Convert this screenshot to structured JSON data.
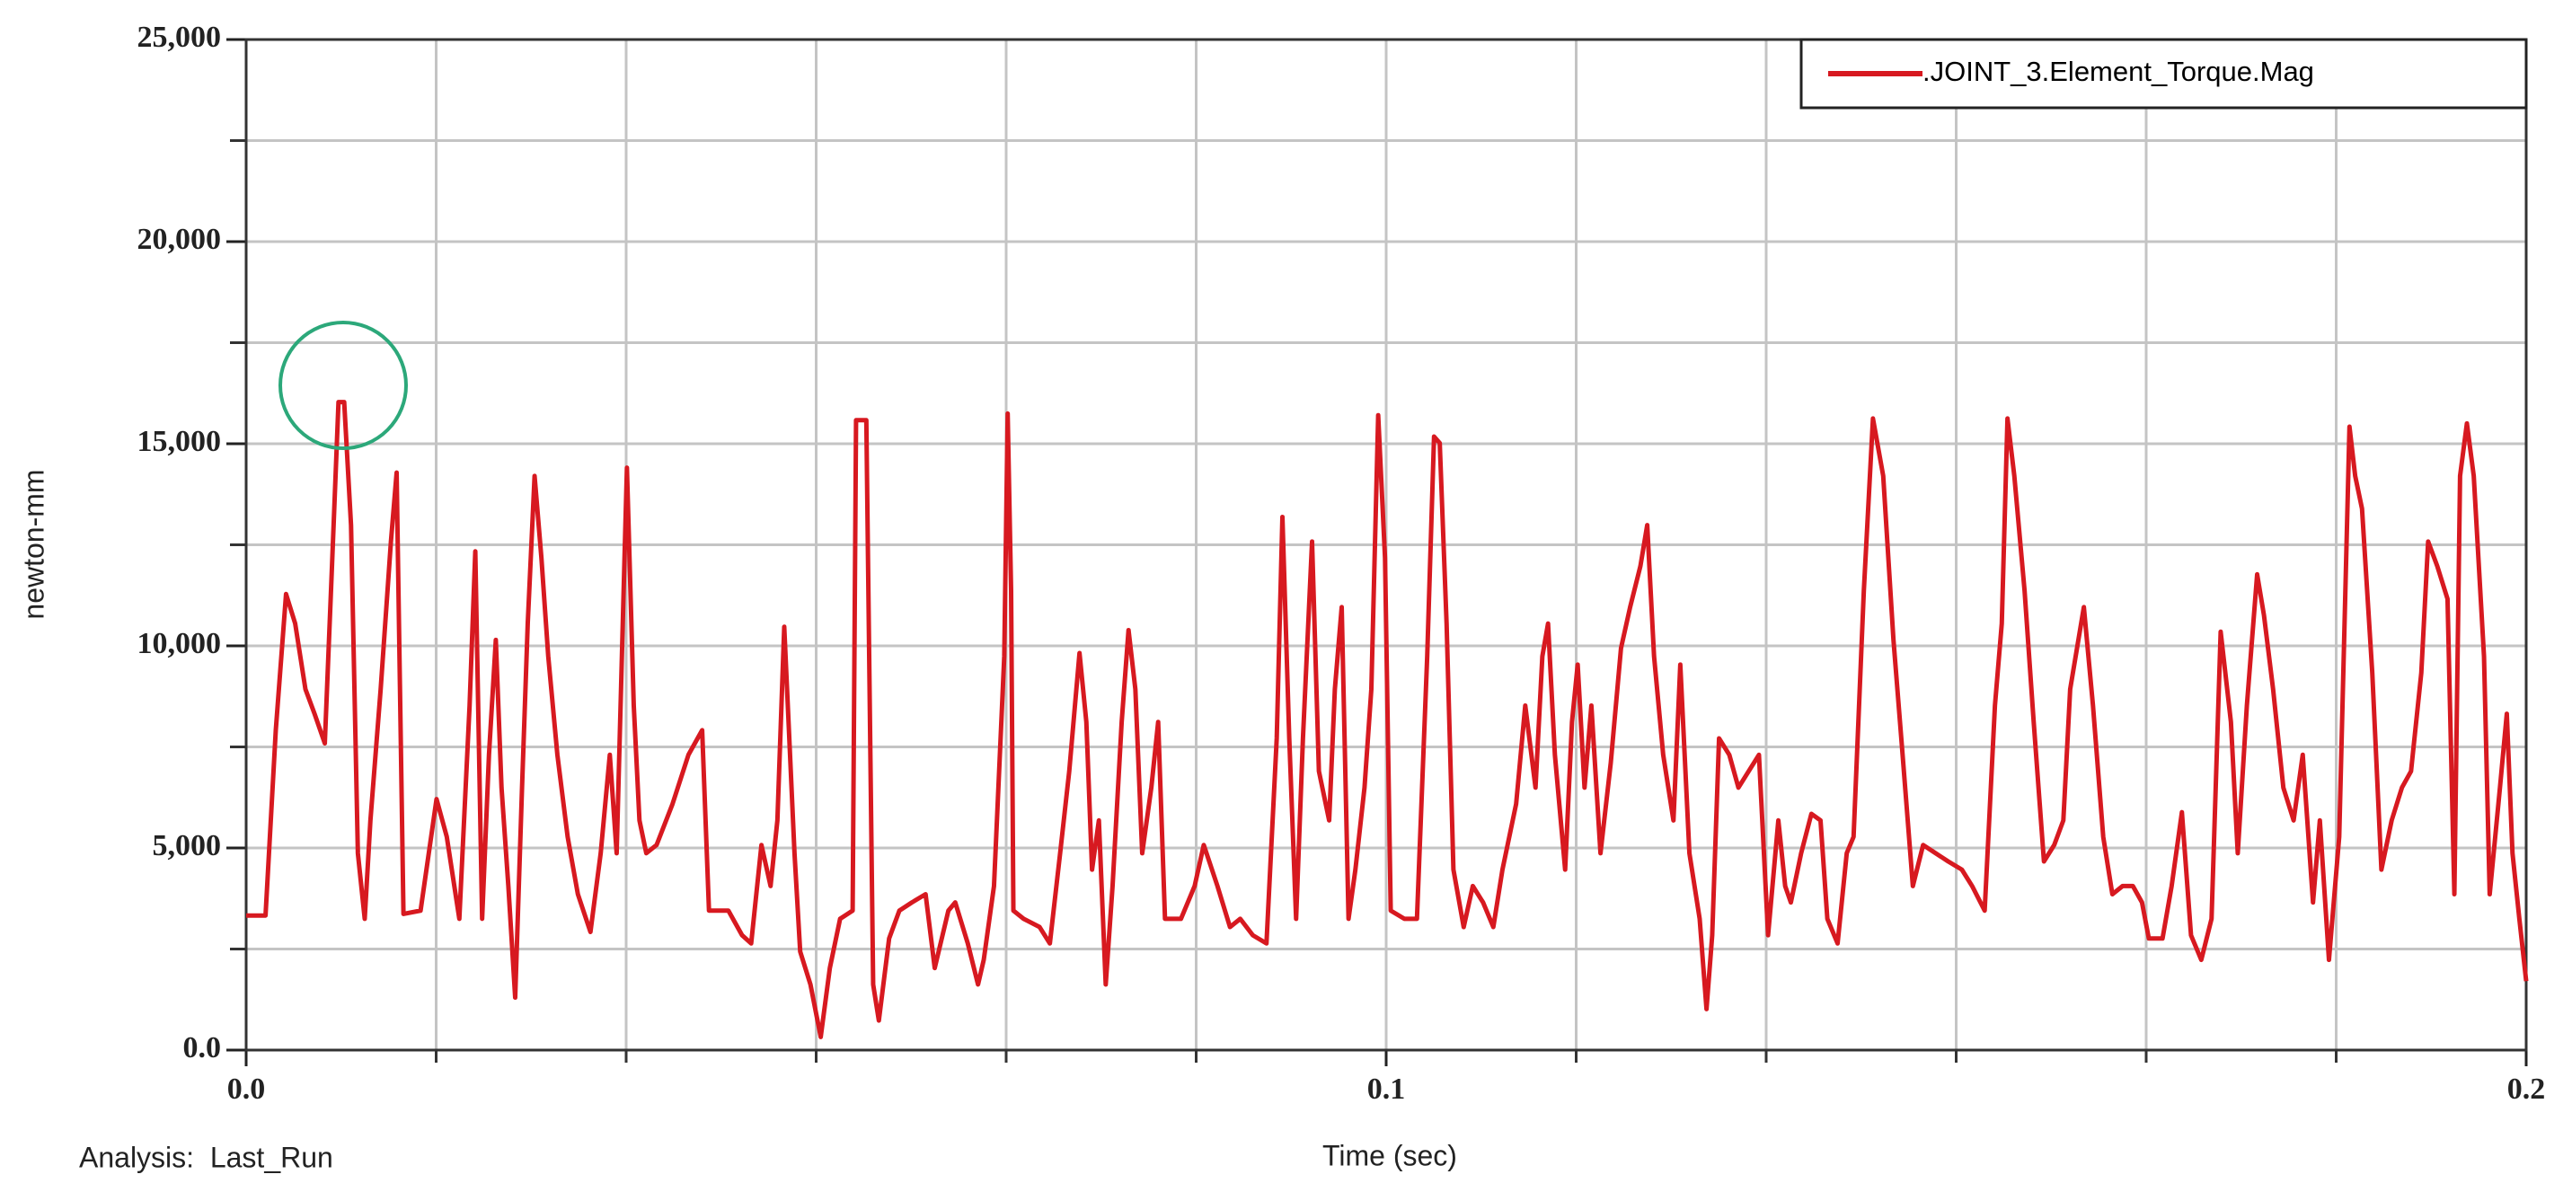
{
  "chart_data": {
    "type": "line",
    "xlabel": "Time (sec)",
    "ylabel": "newton-mm",
    "annotation": "Analysis:  Last_Run",
    "xlim": [
      0,
      0.2
    ],
    "xticks": [
      {
        "value": 0,
        "label": "0.0"
      },
      0.1,
      0.2
    ],
    "ylim": [
      0,
      25000
    ],
    "yticks": [
      {
        "value": 0,
        "label": "0.0"
      },
      {
        "value": 5000,
        "label": "5,000"
      },
      {
        "value": 10000,
        "label": "10,000"
      },
      {
        "value": 15000,
        "label": "15,000"
      },
      {
        "value": 20000,
        "label": "20,000"
      },
      {
        "value": 25000,
        "label": "25,000"
      }
    ],
    "grid": true,
    "grid_divisions": {
      "x": 12,
      "y": 10
    },
    "legend": "top-right",
    "x": [
      0,
      0.0017,
      0.0026,
      0.0035,
      0.0043,
      0.0052,
      0.006,
      0.0069,
      0.0075,
      0.0081,
      0.0086,
      0.0092,
      0.0098,
      0.0104,
      0.0109,
      0.0118,
      0.0127,
      0.0132,
      0.0138,
      0.0153,
      0.0167,
      0.0176,
      0.0187,
      0.0196,
      0.0201,
      0.0207,
      0.0213,
      0.0219,
      0.0224,
      0.023,
      0.0236,
      0.0242,
      0.0247,
      0.0253,
      0.0259,
      0.0265,
      0.0273,
      0.0282,
      0.0291,
      0.0302,
      0.0311,
      0.0319,
      0.0325,
      0.0334,
      0.034,
      0.0345,
      0.0351,
      0.036,
      0.0374,
      0.0388,
      0.04,
      0.0406,
      0.0423,
      0.0435,
      0.0443,
      0.0452,
      0.046,
      0.0466,
      0.0472,
      0.0481,
      0.0486,
      0.0495,
      0.0504,
      0.0512,
      0.0521,
      0.0532,
      0.0535,
      0.0544,
      0.055,
      0.0555,
      0.0564,
      0.0573,
      0.0584,
      0.0596,
      0.0604,
      0.0616,
      0.0622,
      0.0633,
      0.0642,
      0.0647,
      0.0656,
      0.0665,
      0.0668,
      0.0671,
      0.0673,
      0.0682,
      0.0696,
      0.0705,
      0.0714,
      0.0722,
      0.0731,
      0.0737,
      0.0742,
      0.0748,
      0.0754,
      0.076,
      0.0768,
      0.0774,
      0.078,
      0.0786,
      0.0794,
      0.08,
      0.0806,
      0.082,
      0.0832,
      0.084,
      0.0852,
      0.0863,
      0.0872,
      0.0883,
      0.0895,
      0.0904,
      0.0909,
      0.0915,
      0.0921,
      0.0927,
      0.0935,
      0.0941,
      0.095,
      0.0955,
      0.0961,
      0.0967,
      0.0973,
      0.0981,
      0.0987,
      0.0993,
      0.0999,
      0.1004,
      0.1016,
      0.1027,
      0.1036,
      0.1042,
      0.1047,
      0.1053,
      0.1059,
      0.1068,
      0.1076,
      0.1085,
      0.1094,
      0.1102,
      0.1114,
      0.1122,
      0.1131,
      0.1137,
      0.1142,
      0.1148,
      0.1157,
      0.1163,
      0.1168,
      0.1174,
      0.118,
      0.1188,
      0.1197,
      0.1206,
      0.1214,
      0.1223,
      0.1229,
      0.1235,
      0.1243,
      0.1252,
      0.1258,
      0.1266,
      0.1275,
      0.1281,
      0.1286,
      0.1292,
      0.1301,
      0.1309,
      0.1318,
      0.1327,
      0.1335,
      0.1344,
      0.135,
      0.1355,
      0.1364,
      0.1373,
      0.1381,
      0.1387,
      0.1396,
      0.1404,
      0.141,
      0.1419,
      0.1427,
      0.1436,
      0.1445,
      0.1453,
      0.1462,
      0.1471,
      0.1482,
      0.1493,
      0.1505,
      0.1514,
      0.1525,
      0.1534,
      0.154,
      0.1545,
      0.1551,
      0.156,
      0.1568,
      0.1577,
      0.1586,
      0.1594,
      0.16,
      0.1612,
      0.162,
      0.1629,
      0.1637,
      0.1646,
      0.1655,
      0.1663,
      0.1669,
      0.1681,
      0.1689,
      0.1698,
      0.1706,
      0.1715,
      0.1724,
      0.1732,
      0.1741,
      0.1747,
      0.1755,
      0.1764,
      0.177,
      0.1778,
      0.1787,
      0.1796,
      0.1804,
      0.1813,
      0.1819,
      0.1827,
      0.1836,
      0.1845,
      0.185,
      0.1856,
      0.1865,
      0.1873,
      0.1882,
      0.1891,
      0.1899,
      0.1908,
      0.1914,
      0.1922,
      0.1931,
      0.1937,
      0.1942,
      0.1948,
      0.1954,
      0.1963,
      0.1968,
      0.1977,
      0.1983,
      0.1988,
      0.1994,
      0.2
    ],
    "series": [
      {
        "name": ".JOINT_3.Element_Torque.Mag",
        "color": "#d71920",
        "values": [
          3328,
          3328,
          7914,
          11282,
          10552,
          8928,
          8320,
          7589,
          11769,
          16031,
          16031,
          12987,
          4870,
          3247,
          5682,
          8928,
          12581,
          14286,
          3368,
          3450,
          6209,
          5276,
          3247,
          8523,
          12338,
          3247,
          7305,
          10146,
          6493,
          4058,
          1299,
          6493,
          10552,
          14204,
          12175,
          9740,
          7305,
          5276,
          3855,
          2922,
          4870,
          7305,
          4870,
          14407,
          8523,
          5682,
          4870,
          5073,
          6088,
          7305,
          7914,
          3450,
          3450,
          2841,
          2638,
          5073,
          4058,
          5682,
          10471,
          4870,
          2435,
          1623,
          325,
          2029,
          3247,
          3450,
          15584,
          15584,
          1623,
          731,
          2760,
          3450,
          3653,
          3855,
          2029,
          3450,
          3653,
          2638,
          1623,
          2232,
          4058,
          9740,
          15747,
          11364,
          3450,
          3247,
          3044,
          2638,
          4870,
          6899,
          9821,
          8117,
          4464,
          5682,
          1623,
          4058,
          8117,
          10390,
          8928,
          4870,
          6493,
          8117,
          3247,
          3247,
          4058,
          5073,
          4058,
          3044,
          3247,
          2841,
          2638,
          7711,
          13190,
          7711,
          3247,
          7711,
          12581,
          6899,
          5682,
          8928,
          10958,
          3247,
          4464,
          6493,
          8928,
          15706,
          12175,
          3450,
          3247,
          3247,
          9740,
          15178,
          15016,
          10552,
          4464,
          3044,
          4058,
          3653,
          3044,
          4464,
          6088,
          8523,
          6493,
          9740,
          10552,
          7305,
          4464,
          8117,
          9537,
          6493,
          8523,
          4870,
          7102,
          9943,
          10958,
          11972,
          12987,
          9740,
          7305,
          5682,
          9537,
          4870,
          3247,
          1015,
          2841,
          7711,
          7305,
          6493,
          6899,
          7305,
          2841,
          5682,
          4058,
          3653,
          4870,
          5844,
          5682,
          3247,
          2638,
          4870,
          5276,
          11364,
          15625,
          14204,
          10146,
          7305,
          4058,
          5073,
          4870,
          4667,
          4464,
          4058,
          3450,
          8523,
          10552,
          15625,
          14204,
          11364,
          8117,
          4667,
          5073,
          5682,
          8928,
          10958,
          8523,
          5276,
          3855,
          4058,
          4058,
          3653,
          2760,
          2760,
          4058,
          5885,
          2841,
          2232,
          3247,
          10349,
          8117,
          4870,
          8523,
          11769,
          10755,
          8928,
          6493,
          5682,
          7305,
          3653,
          5682,
          2232,
          5276,
          15422,
          14204,
          13393,
          9334,
          4464,
          5682,
          6493,
          6899,
          9334,
          12581,
          11972,
          11161,
          3855,
          14204,
          15503,
          14204,
          9740,
          3855,
          6493,
          8320,
          4870,
          3247,
          1705
        ]
      }
    ]
  }
}
